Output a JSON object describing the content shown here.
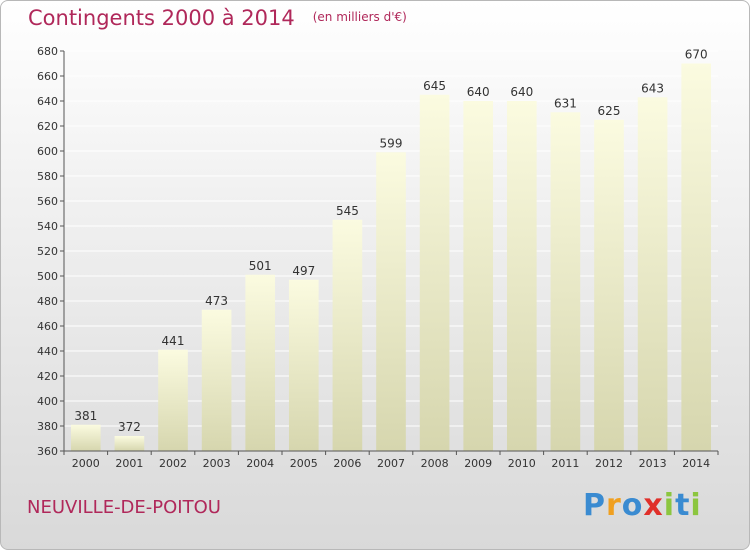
{
  "header": {
    "title": "Contingents 2000 à 2014",
    "subtitle": "(en milliers d'€)"
  },
  "footer": {
    "place": "NEUVILLE-DE-POITOU"
  },
  "logo": {
    "letters": [
      {
        "char": "P",
        "color": "#3a8bd1"
      },
      {
        "char": "r",
        "color": "#f0a020"
      },
      {
        "char": "o",
        "color": "#3a8bd1"
      },
      {
        "char": "x",
        "color": "#e0302a"
      },
      {
        "char": "i",
        "color": "#8cc63f"
      },
      {
        "char": "t",
        "color": "#3a8bd1"
      },
      {
        "char": "i",
        "color": "#8cc63f"
      }
    ]
  },
  "chart_data": {
    "type": "bar",
    "title": "Contingents 2000 à 2014",
    "subtitle": "(en milliers d'€)",
    "categories": [
      "2000",
      "2001",
      "2002",
      "2003",
      "2004",
      "2005",
      "2006",
      "2007",
      "2008",
      "2009",
      "2010",
      "2011",
      "2012",
      "2013",
      "2014"
    ],
    "values": [
      381,
      372,
      441,
      473,
      501,
      497,
      545,
      599,
      645,
      640,
      640,
      631,
      625,
      643,
      670
    ],
    "ylim": [
      360,
      680
    ],
    "yticks": [
      360,
      380,
      400,
      420,
      440,
      460,
      480,
      500,
      520,
      540,
      560,
      580,
      600,
      620,
      640,
      660,
      680
    ],
    "grid": true,
    "colors": {
      "bar_top": "#fbfbe0",
      "bar_bottom": "#d6d6ae",
      "grid": "#ffffff",
      "axis": "#555555"
    }
  }
}
